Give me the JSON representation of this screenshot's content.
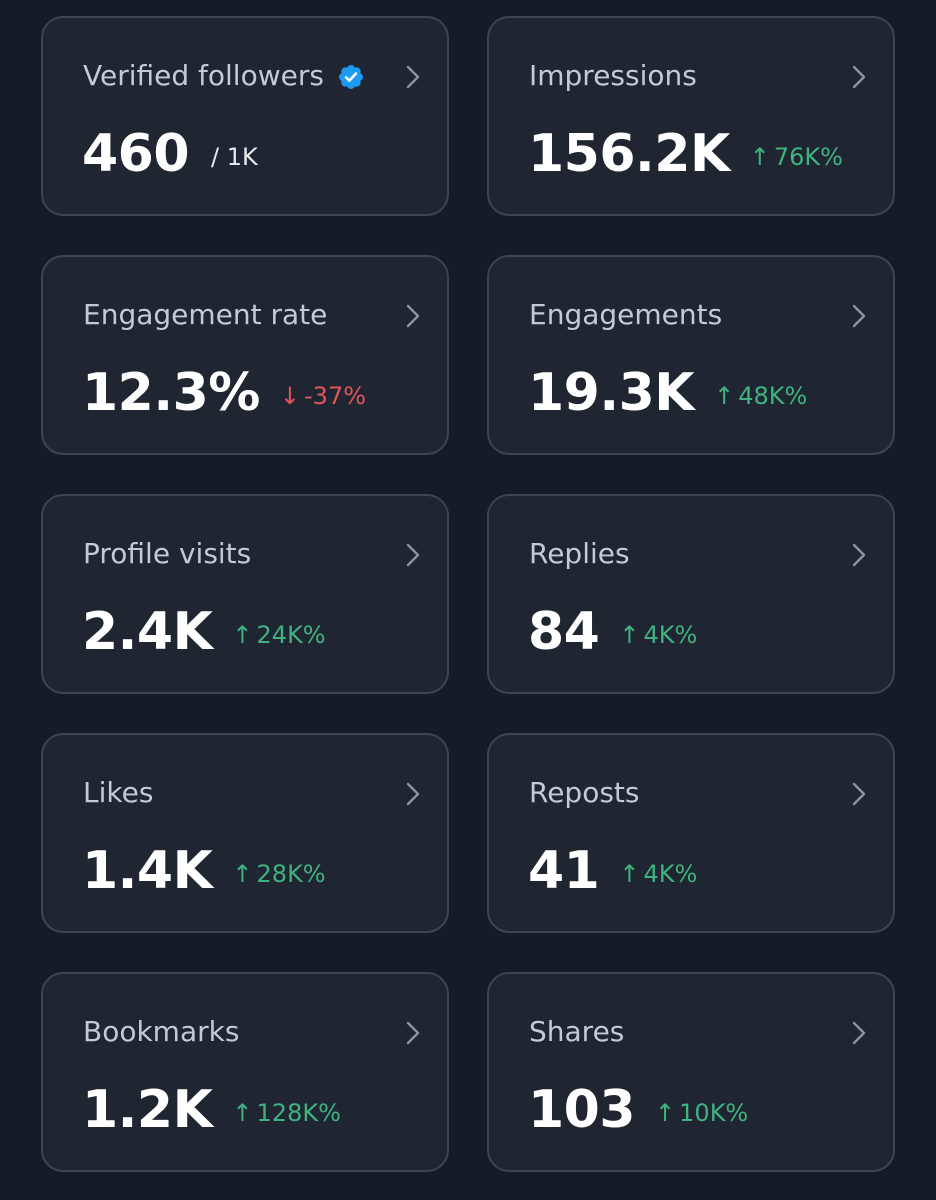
{
  "colors": {
    "background": "#161c26",
    "card": "#202631",
    "border": "#3b4553",
    "positive": "#3fb27f",
    "negative": "#e0535c",
    "verified": "#1d9bf0"
  },
  "cards": [
    {
      "label": "Verified followers",
      "value": "460",
      "denominator": "/ 1K",
      "verified": true
    },
    {
      "label": "Impressions",
      "value": "156.2K",
      "delta": "76K%",
      "direction": "up"
    },
    {
      "label": "Engagement rate",
      "value": "12.3%",
      "delta": "-37%",
      "direction": "down"
    },
    {
      "label": "Engagements",
      "value": "19.3K",
      "delta": "48K%",
      "direction": "up"
    },
    {
      "label": "Profile visits",
      "value": "2.4K",
      "delta": "24K%",
      "direction": "up"
    },
    {
      "label": "Replies",
      "value": "84",
      "delta": "4K%",
      "direction": "up"
    },
    {
      "label": "Likes",
      "value": "1.4K",
      "delta": "28K%",
      "direction": "up"
    },
    {
      "label": "Reposts",
      "value": "41",
      "delta": "4K%",
      "direction": "up"
    },
    {
      "label": "Bookmarks",
      "value": "1.2K",
      "delta": "128K%",
      "direction": "up"
    },
    {
      "label": "Shares",
      "value": "103",
      "delta": "10K%",
      "direction": "up"
    }
  ]
}
